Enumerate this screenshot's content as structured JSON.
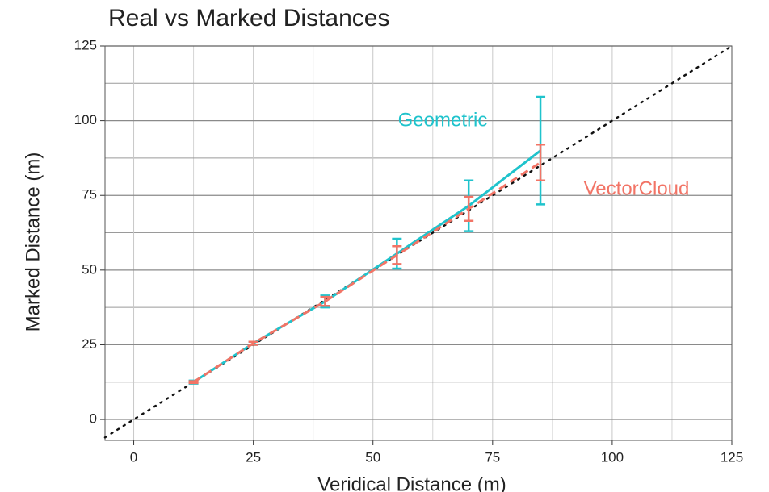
{
  "chart_data": {
    "type": "line",
    "title": "Real vs Marked Distances",
    "x_label": "Veridical Distance (m)",
    "y_label": "Marked Distance (m)",
    "xlim": [
      -6,
      125
    ],
    "ylim": [
      -7,
      125
    ],
    "xticks": [
      0,
      25,
      50,
      75,
      100,
      125
    ],
    "yticks": [
      0,
      25,
      50,
      75,
      100,
      125
    ],
    "x_minor_ticks": [
      12.5,
      37.5,
      62.5,
      87.5,
      112.5
    ],
    "y_minor_ticks": [
      12.5,
      37.5,
      62.5,
      87.5,
      112.5
    ],
    "grid": true,
    "identity_line": true,
    "series": [
      {
        "name": "Geometric",
        "color": "#1fc3cc",
        "dashed": false,
        "x": [
          12.5,
          25,
          40,
          55,
          70,
          85
        ],
        "values": [
          12.5,
          25.5,
          39.5,
          55.5,
          71.5,
          90
        ],
        "errors": [
          0.5,
          0.5,
          2,
          5,
          8.5,
          18
        ]
      },
      {
        "name": "VectorCloud",
        "color": "#f27466",
        "dashed": true,
        "x": [
          12.5,
          25,
          40,
          55,
          70,
          85
        ],
        "values": [
          12.5,
          25.5,
          39.5,
          55,
          70.5,
          86
        ],
        "errors": [
          0.3,
          0.5,
          1.5,
          3,
          4,
          6
        ]
      }
    ]
  }
}
